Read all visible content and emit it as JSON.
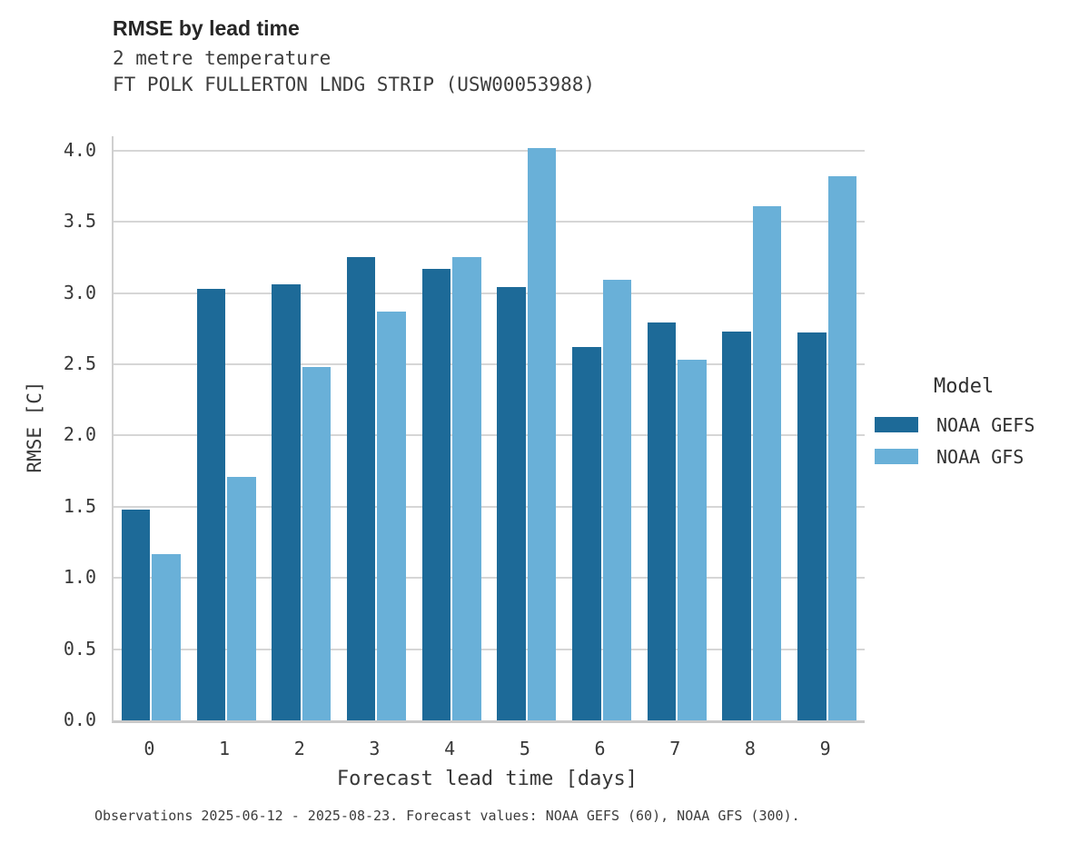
{
  "title": "RMSE by lead time",
  "subtitle1": "2 metre temperature",
  "subtitle2": "FT POLK FULLERTON LNDG STRIP (USW00053988)",
  "footer": "Observations 2025-06-12 - 2025-08-23. Forecast values: NOAA GEFS (60), NOAA GFS (300).",
  "legend": {
    "title": "Model"
  },
  "chart_data": {
    "type": "bar",
    "title": "RMSE by lead time",
    "subtitle": [
      "2 metre temperature",
      "FT POLK FULLERTON LNDG STRIP (USW00053988)"
    ],
    "xlabel": "Forecast lead time [days]",
    "ylabel": "RMSE [C]",
    "categories": [
      "0",
      "1",
      "2",
      "3",
      "4",
      "5",
      "6",
      "7",
      "8",
      "9"
    ],
    "series": [
      {
        "name": "NOAA GEFS",
        "color": "#1d6a98",
        "values": [
          1.48,
          3.03,
          3.06,
          3.25,
          3.17,
          3.04,
          2.62,
          2.79,
          2.73,
          2.72
        ]
      },
      {
        "name": "NOAA GFS",
        "color": "#69b0d8",
        "values": [
          1.17,
          1.71,
          2.48,
          2.87,
          3.25,
          4.02,
          3.09,
          2.53,
          3.61,
          3.82
        ]
      }
    ],
    "ylim": [
      0,
      4.1
    ],
    "yticks": [
      0.0,
      0.5,
      1.0,
      1.5,
      2.0,
      2.5,
      3.0,
      3.5,
      4.0
    ],
    "grid": true,
    "legend_title": "Model",
    "legend_position": "right"
  }
}
